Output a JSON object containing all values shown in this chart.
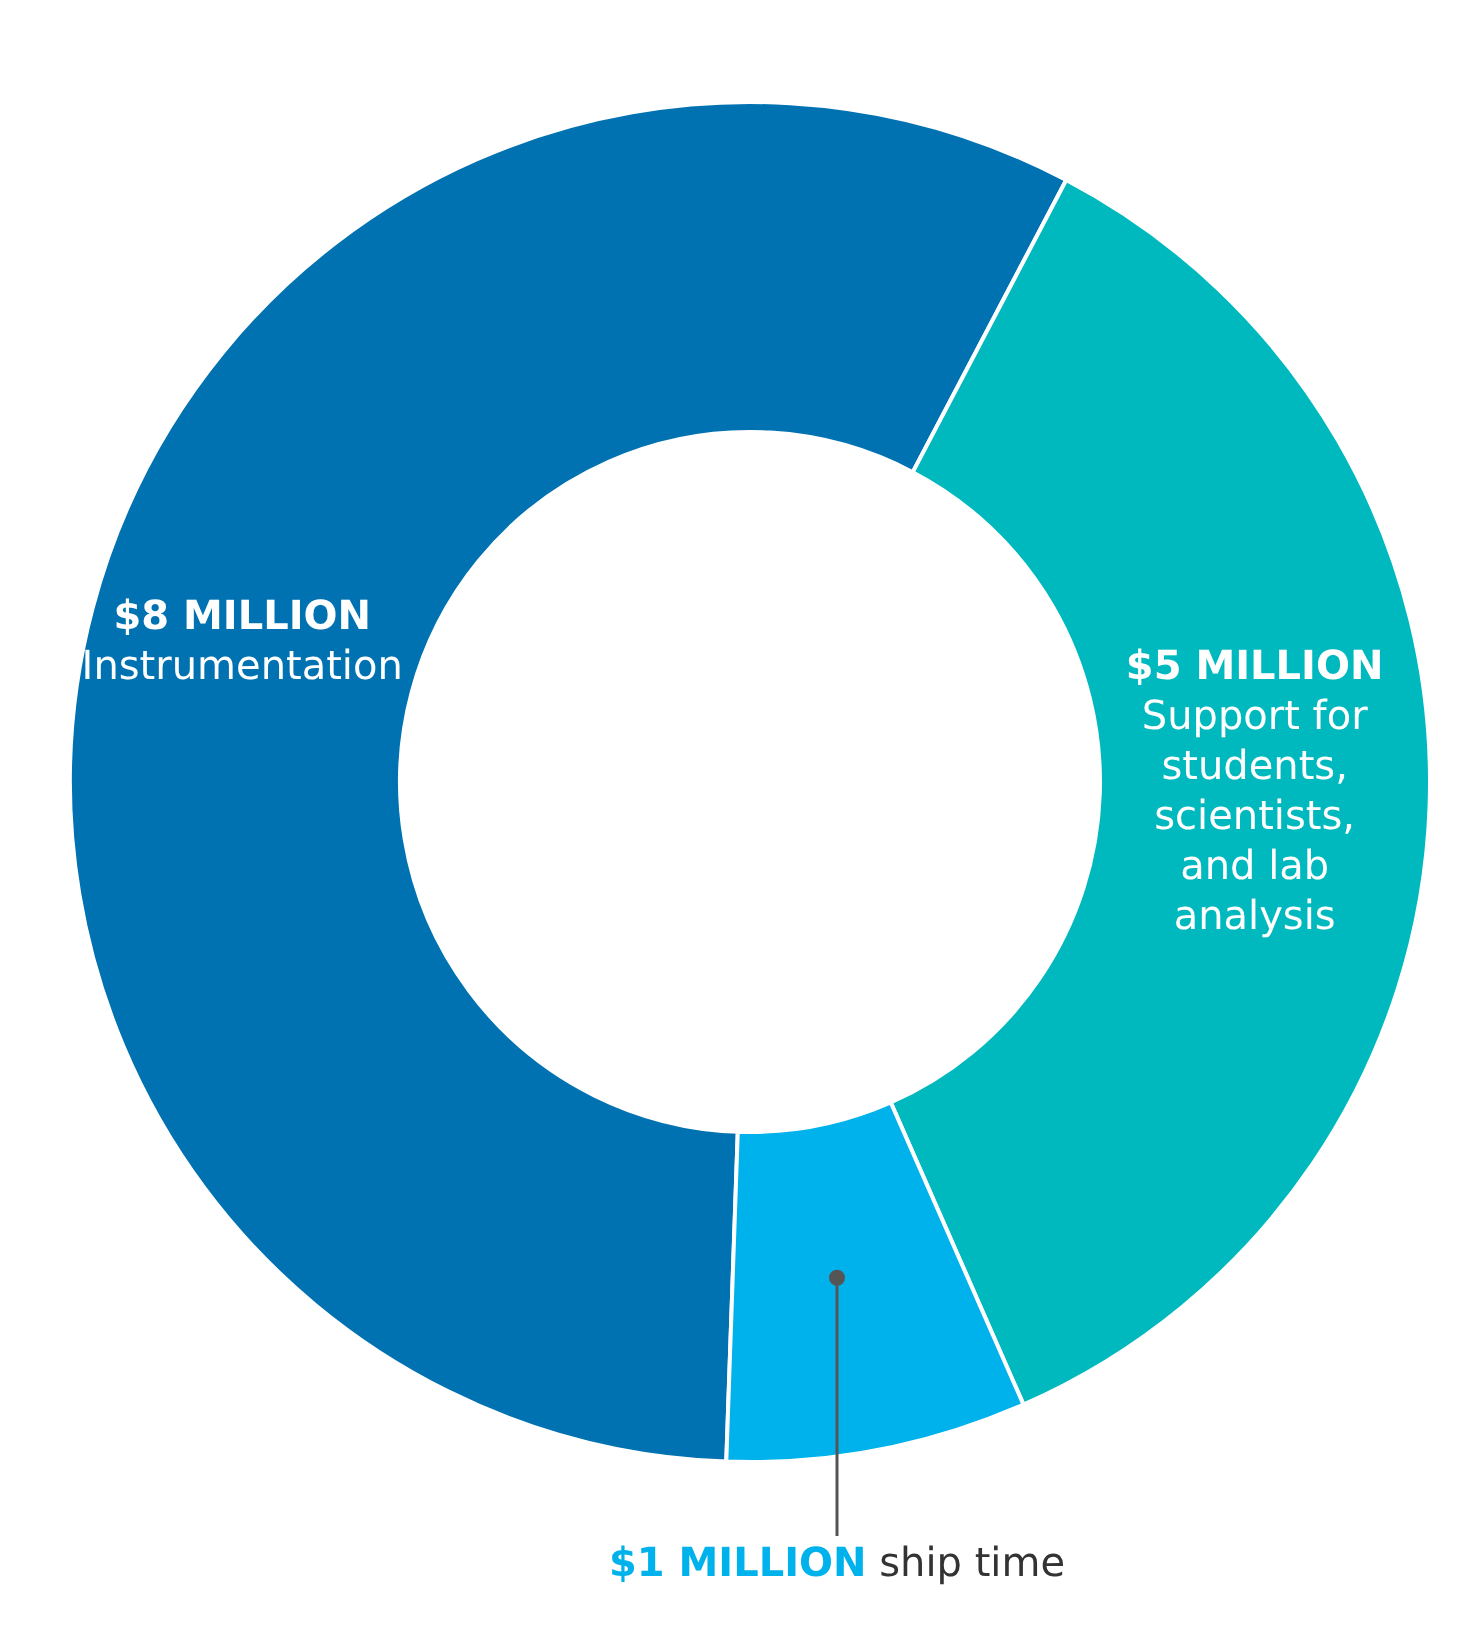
{
  "chart_data": {
    "type": "donut",
    "categories": [
      "Instrumentation",
      "Support for students, scientists, and lab analysis",
      "ship time"
    ],
    "values": [
      8,
      5,
      1
    ],
    "value_labels": [
      "$8 MILLION",
      "$5 MILLION",
      "$1 MILLION"
    ],
    "colors": [
      "#0072b2",
      "#00b9be",
      "#00b2ec"
    ],
    "legend": false
  }
}
